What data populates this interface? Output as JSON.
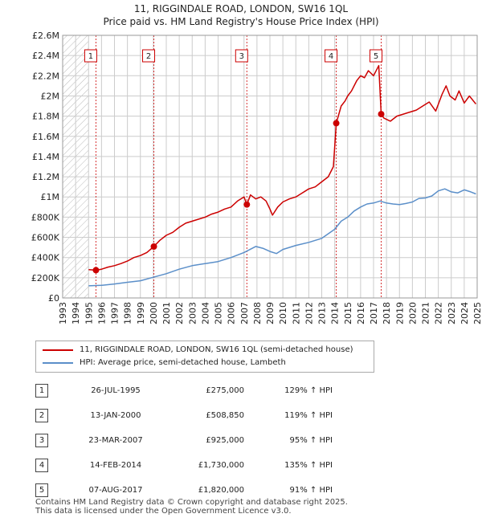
{
  "title": "11, RIGGINDALE ROAD, LONDON, SW16 1QL",
  "subtitle": "Price paid vs. HM Land Registry's House Price Index (HPI)",
  "colors": {
    "property": "#cc0000",
    "hpi": "#5b8fc9",
    "grid": "#cccccc",
    "marker": "#cc0000"
  },
  "chart_data": {
    "type": "line",
    "title": "11, RIGGINDALE ROAD, LONDON, SW16 1QL",
    "subtitle": "Price paid vs. HM Land Registry's House Price Index (HPI)",
    "xlim": [
      1993,
      2025
    ],
    "ylim": [
      0,
      2600000
    ],
    "x_ticks": [
      1993,
      1994,
      1995,
      1996,
      1997,
      1998,
      1999,
      2000,
      2001,
      2002,
      2003,
      2004,
      2005,
      2006,
      2007,
      2008,
      2009,
      2010,
      2011,
      2012,
      2013,
      2014,
      2015,
      2016,
      2017,
      2018,
      2019,
      2020,
      2021,
      2022,
      2023,
      2024,
      2025
    ],
    "y_ticks": [
      {
        "value": 0,
        "label": "£0"
      },
      {
        "value": 200000,
        "label": "£200K"
      },
      {
        "value": 400000,
        "label": "£400K"
      },
      {
        "value": 600000,
        "label": "£600K"
      },
      {
        "value": 800000,
        "label": "£800K"
      },
      {
        "value": 1000000,
        "label": "£1M"
      },
      {
        "value": 1200000,
        "label": "£1.2M"
      },
      {
        "value": 1400000,
        "label": "£1.4M"
      },
      {
        "value": 1600000,
        "label": "£1.6M"
      },
      {
        "value": 1800000,
        "label": "£1.8M"
      },
      {
        "value": 2000000,
        "label": "£2M"
      },
      {
        "value": 2200000,
        "label": "£2.2M"
      },
      {
        "value": 2400000,
        "label": "£2.4M"
      },
      {
        "value": 2600000,
        "label": "£2.6M"
      }
    ],
    "grid": true,
    "hatched_range": [
      1993,
      1995
    ],
    "series": [
      {
        "name": "11, RIGGINDALE ROAD, LONDON, SW16 1QL (semi-detached house)",
        "x": [
          1995.0,
          1995.57,
          1996.0,
          1996.5,
          1997.0,
          1997.5,
          1998.0,
          1998.5,
          1999.0,
          1999.5,
          2000.04,
          2000.5,
          2001.0,
          2001.5,
          2002.0,
          2002.5,
          2003.0,
          2003.5,
          2004.0,
          2004.5,
          2005.0,
          2005.5,
          2006.0,
          2006.5,
          2007.0,
          2007.22,
          2007.5,
          2007.9,
          2008.3,
          2008.7,
          2009.0,
          2009.2,
          2009.6,
          2010.0,
          2010.5,
          2011.0,
          2011.5,
          2012.0,
          2012.5,
          2013.0,
          2013.5,
          2013.9,
          2014.12,
          2014.5,
          2014.8,
          2015.0,
          2015.3,
          2015.7,
          2016.0,
          2016.3,
          2016.6,
          2017.0,
          2017.4,
          2017.59,
          2017.8,
          2018.3,
          2018.8,
          2019.3,
          2019.8,
          2020.3,
          2020.8,
          2021.3,
          2021.8,
          2022.3,
          2022.6,
          2022.9,
          2023.3,
          2023.6,
          2024.0,
          2024.4,
          2024.9
        ],
        "values": [
          280000,
          275000,
          285000,
          305000,
          320000,
          340000,
          365000,
          400000,
          420000,
          450000,
          508850,
          570000,
          620000,
          650000,
          700000,
          740000,
          760000,
          780000,
          800000,
          830000,
          850000,
          880000,
          900000,
          960000,
          1000000,
          925000,
          1020000,
          980000,
          1000000,
          960000,
          880000,
          820000,
          900000,
          950000,
          980000,
          1000000,
          1040000,
          1080000,
          1100000,
          1150000,
          1200000,
          1300000,
          1730000,
          1900000,
          1950000,
          2000000,
          2050000,
          2150000,
          2200000,
          2180000,
          2250000,
          2200000,
          2300000,
          1820000,
          1780000,
          1750000,
          1800000,
          1820000,
          1840000,
          1860000,
          1900000,
          1940000,
          1850000,
          2020000,
          2100000,
          2000000,
          1960000,
          2050000,
          1930000,
          2000000,
          1920000
        ]
      },
      {
        "name": "HPI: Average price, semi-detached house, Lambeth",
        "x": [
          1995.0,
          1996.0,
          1997.0,
          1998.0,
          1999.0,
          2000.0,
          2001.0,
          2002.0,
          2003.0,
          2004.0,
          2005.0,
          2006.0,
          2007.0,
          2007.9,
          2008.5,
          2009.0,
          2009.5,
          2010.0,
          2011.0,
          2012.0,
          2013.0,
          2014.0,
          2014.5,
          2015.0,
          2015.5,
          2016.0,
          2016.5,
          2017.0,
          2017.5,
          2018.0,
          2018.5,
          2019.0,
          2019.5,
          2020.0,
          2020.5,
          2021.0,
          2021.5,
          2022.0,
          2022.5,
          2023.0,
          2023.5,
          2024.0,
          2024.5,
          2024.9
        ],
        "values": [
          120000,
          125000,
          138000,
          155000,
          170000,
          205000,
          240000,
          285000,
          320000,
          340000,
          360000,
          400000,
          450000,
          510000,
          490000,
          460000,
          440000,
          480000,
          520000,
          550000,
          590000,
          680000,
          760000,
          800000,
          860000,
          900000,
          930000,
          940000,
          960000,
          940000,
          930000,
          925000,
          935000,
          950000,
          985000,
          990000,
          1010000,
          1060000,
          1080000,
          1050000,
          1040000,
          1070000,
          1050000,
          1030000
        ]
      }
    ],
    "sales": [
      {
        "n": "1",
        "x": 1995.57,
        "value": 275000
      },
      {
        "n": "2",
        "x": 2000.04,
        "value": 508850
      },
      {
        "n": "3",
        "x": 2007.22,
        "value": 925000
      },
      {
        "n": "4",
        "x": 2014.12,
        "value": 1730000
      },
      {
        "n": "5",
        "x": 2017.59,
        "value": 1820000
      }
    ]
  },
  "legend": [
    {
      "label": "11, RIGGINDALE ROAD, LONDON, SW16 1QL (semi-detached house)",
      "color": "#cc0000"
    },
    {
      "label": "HPI: Average price, semi-detached house, Lambeth",
      "color": "#5b8fc9"
    }
  ],
  "table": [
    {
      "n": "1",
      "date": "26-JUL-1995",
      "price": "£275,000",
      "hpi": "129% ↑ HPI"
    },
    {
      "n": "2",
      "date": "13-JAN-2000",
      "price": "£508,850",
      "hpi": "119% ↑ HPI"
    },
    {
      "n": "3",
      "date": "23-MAR-2007",
      "price": "£925,000",
      "hpi": "95% ↑ HPI"
    },
    {
      "n": "4",
      "date": "14-FEB-2014",
      "price": "£1,730,000",
      "hpi": "135% ↑ HPI"
    },
    {
      "n": "5",
      "date": "07-AUG-2017",
      "price": "£1,820,000",
      "hpi": "91% ↑ HPI"
    }
  ],
  "footer": {
    "line1": "Contains HM Land Registry data © Crown copyright and database right 2025.",
    "line2": "This data is licensed under the Open Government Licence v3.0."
  }
}
